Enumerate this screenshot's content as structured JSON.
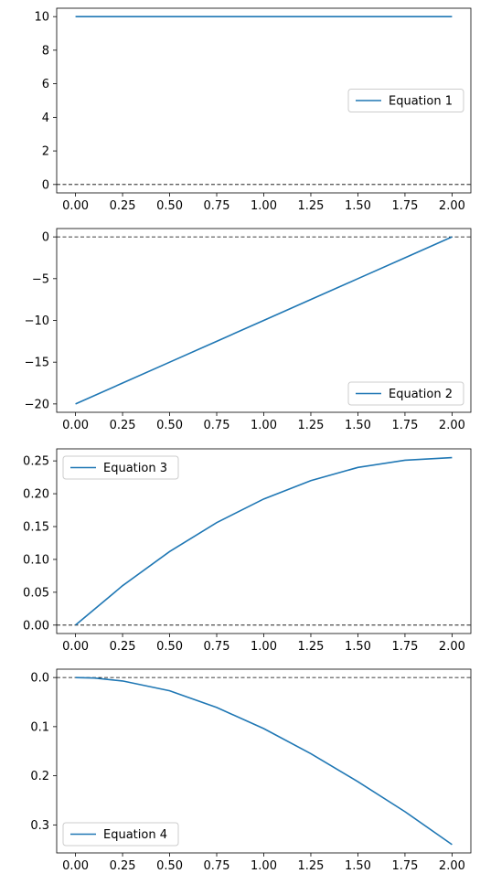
{
  "colors": {
    "series": "#1f77b4",
    "reference_line": "#000000"
  },
  "chart_data": [
    {
      "type": "line",
      "title": "",
      "xlabel": "",
      "ylabel": "",
      "xlim": [
        -0.1,
        2.1
      ],
      "ylim": [
        -0.5,
        10.5
      ],
      "xticks": [
        "0.00",
        "0.25",
        "0.50",
        "0.75",
        "1.00",
        "1.25",
        "1.50",
        "1.75",
        "2.00"
      ],
      "yticks": [
        "0",
        "2",
        "4",
        "6",
        "8",
        "10"
      ],
      "reference_line": {
        "y": 0,
        "style": "dashed"
      },
      "legend": "center-right",
      "series": [
        {
          "name": "Equation 1",
          "x": [
            0,
            0.25,
            0.5,
            0.75,
            1.0,
            1.25,
            1.5,
            1.75,
            2.0
          ],
          "y": [
            10,
            10,
            10,
            10,
            10,
            10,
            10,
            10,
            10
          ]
        }
      ]
    },
    {
      "type": "line",
      "title": "",
      "xlabel": "",
      "ylabel": "",
      "xlim": [
        -0.1,
        2.1
      ],
      "ylim": [
        -21,
        1
      ],
      "xticks": [
        "0.00",
        "0.25",
        "0.50",
        "0.75",
        "1.00",
        "1.25",
        "1.50",
        "1.75",
        "2.00"
      ],
      "yticks": [
        "0",
        "−5",
        "−10",
        "−15",
        "−20"
      ],
      "reference_line": {
        "y": 0,
        "style": "dashed"
      },
      "legend": "lower-right",
      "series": [
        {
          "name": "Equation 2",
          "x": [
            0,
            0.25,
            0.5,
            0.75,
            1.0,
            1.25,
            1.5,
            1.75,
            2.0
          ],
          "y": [
            -20,
            -17.5,
            -15,
            -12.5,
            -10,
            -7.5,
            -5,
            -2.5,
            0
          ]
        }
      ]
    },
    {
      "type": "line",
      "title": "",
      "xlabel": "",
      "ylabel": "",
      "xlim": [
        -0.1,
        2.1
      ],
      "ylim": [
        -0.0128,
        0.2683
      ],
      "xticks": [
        "0.00",
        "0.25",
        "0.50",
        "0.75",
        "1.00",
        "1.25",
        "1.50",
        "1.75",
        "2.00"
      ],
      "yticks": [
        "0.00",
        "0.05",
        "0.10",
        "0.15",
        "0.20",
        "0.25"
      ],
      "reference_line": {
        "y": 0,
        "style": "dashed"
      },
      "legend": "upper-left",
      "series": [
        {
          "name": "Equation 3",
          "x": [
            0,
            0.25,
            0.5,
            0.75,
            1.0,
            1.25,
            1.5,
            1.75,
            2.0
          ],
          "y": [
            0,
            0.06,
            0.112,
            0.156,
            0.192,
            0.22,
            0.24,
            0.251,
            0.255
          ]
        }
      ]
    },
    {
      "type": "line",
      "title": "",
      "xlabel": "",
      "ylabel": "",
      "xlim": [
        -0.1,
        2.1
      ],
      "ylim": [
        -0.017,
        0.357
      ],
      "y_inverted": true,
      "xticks": [
        "0.00",
        "0.25",
        "0.50",
        "0.75",
        "1.00",
        "1.25",
        "1.50",
        "1.75",
        "2.00"
      ],
      "yticks": [
        "0.0",
        "0.1",
        "0.2",
        "0.3"
      ],
      "reference_line": {
        "y": 0,
        "style": "dashed"
      },
      "legend": "lower-left",
      "series": [
        {
          "name": "Equation 4",
          "x": [
            0,
            0.1,
            0.25,
            0.5,
            0.75,
            1.0,
            1.25,
            1.5,
            1.75,
            2.0
          ],
          "y": [
            0,
            0.001,
            0.007,
            0.027,
            0.061,
            0.104,
            0.155,
            0.212,
            0.273,
            0.34
          ]
        }
      ]
    }
  ]
}
